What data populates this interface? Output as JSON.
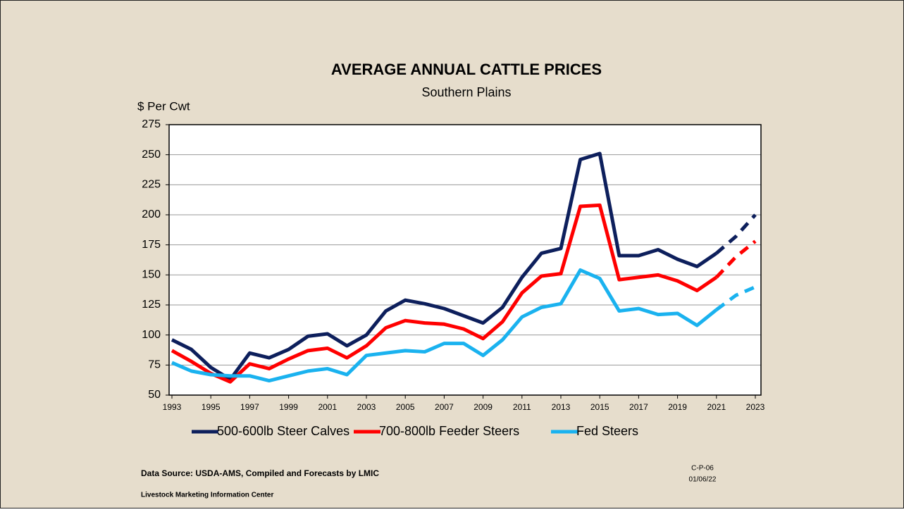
{
  "chart_data": {
    "type": "line",
    "title": "AVERAGE ANNUAL CATTLE PRICES",
    "subtitle": "Southern Plains",
    "y_label": "$ Per Cwt",
    "x": [
      1993,
      1994,
      1995,
      1996,
      1997,
      1998,
      1999,
      2000,
      2001,
      2002,
      2003,
      2004,
      2005,
      2006,
      2007,
      2008,
      2009,
      2010,
      2011,
      2012,
      2013,
      2014,
      2015,
      2016,
      2017,
      2018,
      2019,
      2020,
      2021,
      2022,
      2023
    ],
    "xlim": [
      1993,
      2023
    ],
    "xticks": [
      1993,
      1995,
      1997,
      1999,
      2001,
      2003,
      2005,
      2007,
      2009,
      2011,
      2013,
      2015,
      2017,
      2019,
      2021,
      2023
    ],
    "ylim": [
      50,
      275
    ],
    "yticks": [
      50,
      75,
      100,
      125,
      150,
      175,
      200,
      225,
      250,
      275
    ],
    "grid": true,
    "forecast_start": 2021,
    "series": [
      {
        "name": "500-600lb Steer Calves",
        "color": "#0d1f5c",
        "values": [
          96,
          88,
          73,
          63,
          85,
          81,
          88,
          99,
          101,
          91,
          100,
          120,
          129,
          126,
          122,
          116,
          110,
          123,
          148,
          168,
          172,
          246,
          251,
          166,
          166,
          171,
          163,
          157,
          168,
          182,
          200
        ]
      },
      {
        "name": "700-800lb Feeder Steers",
        "color": "#ff0000",
        "values": [
          87,
          78,
          68,
          61,
          76,
          72,
          80,
          87,
          89,
          81,
          91,
          106,
          112,
          110,
          109,
          105,
          97,
          111,
          135,
          149,
          151,
          207,
          208,
          146,
          148,
          150,
          145,
          137,
          148,
          165,
          178
        ]
      },
      {
        "name": "Fed Steers",
        "color": "#1ab2ef",
        "values": [
          77,
          70,
          67,
          66,
          66,
          62,
          66,
          70,
          72,
          67,
          83,
          85,
          87,
          86,
          93,
          93,
          83,
          96,
          115,
          123,
          126,
          154,
          147,
          120,
          122,
          117,
          118,
          108,
          121,
          133,
          140
        ]
      }
    ],
    "source": "Data Source:  USDA-AMS, Compiled and Forecasts by LMIC",
    "organization": "Livestock Marketing Information Center",
    "code": "C-P-06",
    "date": "01/06/22"
  }
}
